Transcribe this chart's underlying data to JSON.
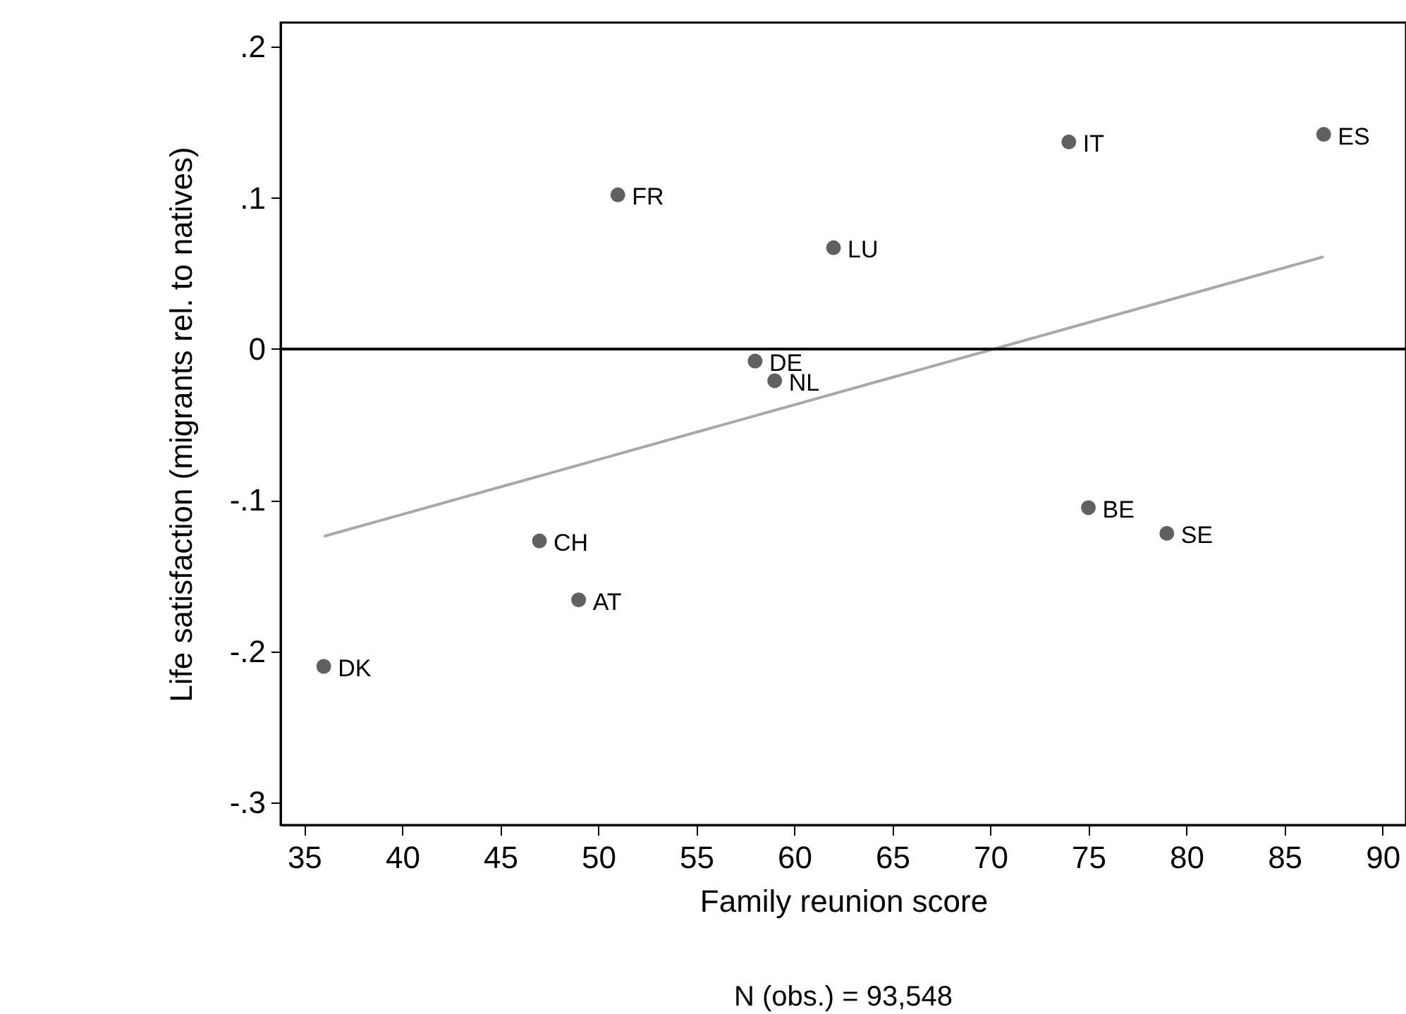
{
  "chart_data": {
    "type": "scatter",
    "xlabel": "Family reunion score",
    "ylabel": "Life satisfaction (migrants rel. to natives)",
    "xlim": [
      33.8,
      91.2
    ],
    "ylim": [
      -0.315,
      0.216
    ],
    "xticks": [
      35,
      40,
      45,
      50,
      55,
      60,
      65,
      70,
      75,
      80,
      85,
      90
    ],
    "yticks": [
      {
        "value": 0.2,
        "label": ".2"
      },
      {
        "value": 0.1,
        "label": ".1"
      },
      0,
      {
        "value": -0.1,
        "label": "-.1"
      },
      {
        "value": -0.2,
        "label": "-.2"
      },
      {
        "value": -0.3,
        "label": "-.3"
      }
    ],
    "grid": false,
    "marker": "circle",
    "series": [
      {
        "type": "scatter",
        "color": "#606060",
        "x": [
          36,
          47,
          49,
          51,
          58,
          59,
          62,
          74,
          75,
          79,
          87
        ],
        "values": [
          -0.21,
          -0.127,
          -0.166,
          0.102,
          -0.008,
          -0.021,
          0.067,
          0.137,
          -0.105,
          -0.122,
          0.142
        ]
      },
      {
        "type": "line",
        "marker": "none",
        "color": "#a8a8a8",
        "x": [
          36,
          87
        ],
        "values": [
          -0.124,
          0.061
        ]
      }
    ],
    "ref_lines": [
      {
        "axis": "y",
        "value": 0,
        "color": "#000000"
      }
    ],
    "annotations": [
      {
        "text": "DK",
        "x": 36,
        "y": -0.21
      },
      {
        "text": "CH",
        "x": 47,
        "y": -0.127
      },
      {
        "text": "AT",
        "x": 49,
        "y": -0.166
      },
      {
        "text": "FR",
        "x": 51,
        "y": 0.102
      },
      {
        "text": "DE",
        "x": 58,
        "y": -0.008
      },
      {
        "text": "NL",
        "x": 59,
        "y": -0.021
      },
      {
        "text": "LU",
        "x": 62,
        "y": 0.067
      },
      {
        "text": "IT",
        "x": 74,
        "y": 0.137
      },
      {
        "text": "BE",
        "x": 75,
        "y": -0.105
      },
      {
        "text": "SE",
        "x": 79,
        "y": -0.122
      },
      {
        "text": "ES",
        "x": 87,
        "y": 0.142
      },
      "N (obs.) = 93,548"
    ]
  }
}
